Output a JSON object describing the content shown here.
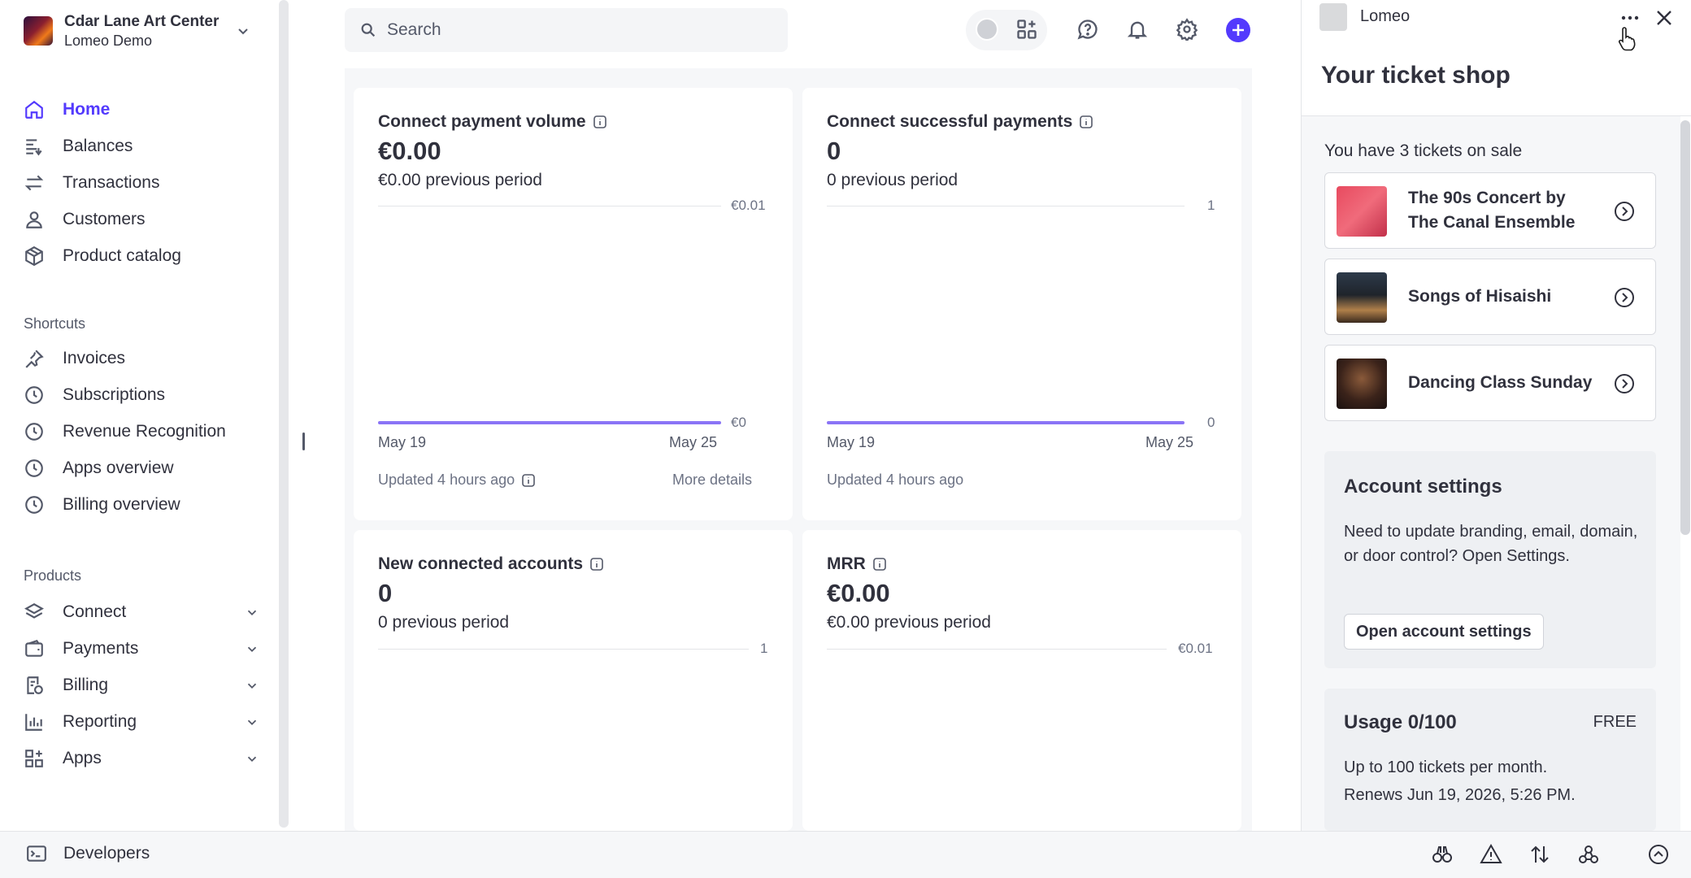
{
  "account": {
    "name": "Cdar Lane Art Center",
    "sub": "Lomeo Demo"
  },
  "nav": [
    {
      "label": "Home",
      "icon": "home-icon",
      "active": true
    },
    {
      "label": "Balances",
      "icon": "balances-icon"
    },
    {
      "label": "Transactions",
      "icon": "transactions-icon"
    },
    {
      "label": "Customers",
      "icon": "customers-icon"
    },
    {
      "label": "Product catalog",
      "icon": "product-catalog-icon"
    }
  ],
  "shortcuts": {
    "label": "Shortcuts",
    "items": [
      {
        "label": "Invoices",
        "icon": "pin-icon"
      },
      {
        "label": "Subscriptions",
        "icon": "clock-icon"
      },
      {
        "label": "Revenue Recognition",
        "icon": "clock-icon"
      },
      {
        "label": "Apps overview",
        "icon": "clock-icon"
      },
      {
        "label": "Billing overview",
        "icon": "clock-icon"
      }
    ]
  },
  "products": {
    "label": "Products",
    "items": [
      {
        "label": "Connect",
        "icon": "connect-icon"
      },
      {
        "label": "Payments",
        "icon": "payments-icon"
      },
      {
        "label": "Billing",
        "icon": "billing-icon"
      },
      {
        "label": "Reporting",
        "icon": "reporting-icon"
      },
      {
        "label": "Apps",
        "icon": "apps-icon"
      }
    ]
  },
  "developers": {
    "label": "Developers",
    "icon": "terminal-icon"
  },
  "search": {
    "placeholder": "Search"
  },
  "cards": [
    {
      "title": "Connect payment volume",
      "value": "€0.00",
      "previous": "€0.00 previous period",
      "y_max": "€0.01",
      "y_min": "€0",
      "date_start": "May 19",
      "date_end": "May 25",
      "updated": "Updated 4 hours ago",
      "more": "More details"
    },
    {
      "title": "Connect successful payments",
      "value": "0",
      "previous": "0 previous period",
      "y_max": "1",
      "y_min": "0",
      "date_start": "May 19",
      "date_end": "May 25",
      "updated": "Updated 4 hours ago"
    },
    {
      "title": "New connected accounts",
      "value": "0",
      "previous": "0 previous period",
      "y_max": "1"
    },
    {
      "title": "MRR",
      "value": "€0.00",
      "previous": "€0.00 previous period",
      "y_max": "€0.01"
    }
  ],
  "panel": {
    "app_name": "Lomeo",
    "title": "Your ticket shop",
    "tickets_label": "You have 3 tickets on sale",
    "tickets": [
      {
        "line1": "The 90s Concert by",
        "line2": "The Canal Ensemble"
      },
      {
        "line1": "Songs of Hisaishi"
      },
      {
        "line1": "Dancing Class Sunday"
      }
    ],
    "account_settings": {
      "title": "Account settings",
      "text": "Need to update branding, email, domain, or door control? Open Settings.",
      "button": "Open account settings"
    },
    "usage": {
      "title": "Usage 0/100",
      "plan": "FREE",
      "line1": "Up to 100 tickets per month.",
      "line2": "Renews Jun 19, 2026, 5:26 PM."
    }
  },
  "colors": {
    "accent": "#533afd",
    "chart_line": "#8a74f6"
  }
}
